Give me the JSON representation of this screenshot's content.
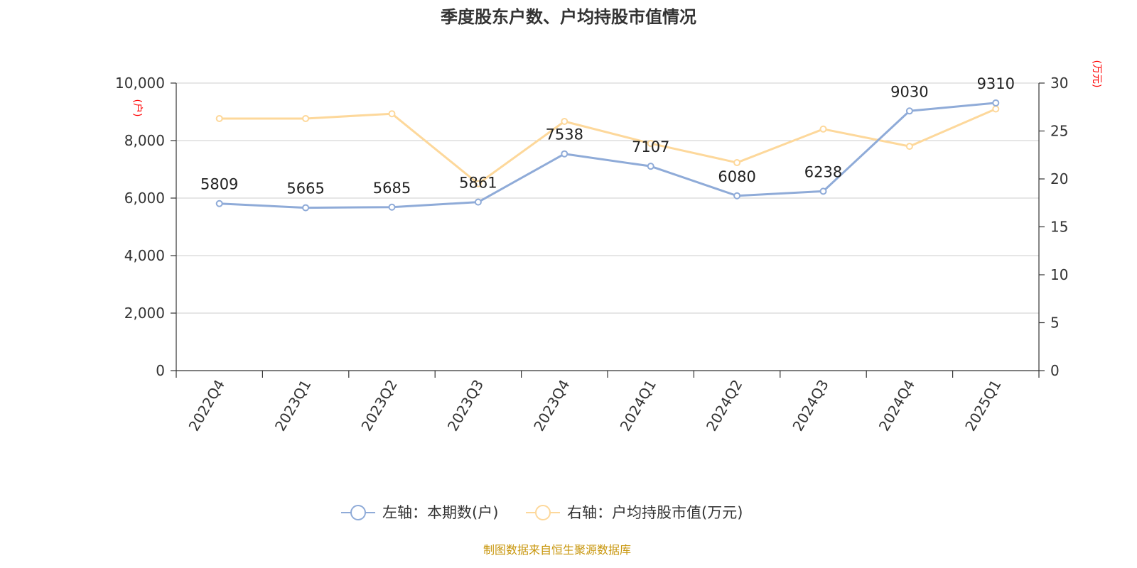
{
  "title": "季度股东户数、户均持股市值情况",
  "source": "制图数据来自恒生聚源数据库",
  "colors": {
    "series_left": "#8fabd8",
    "series_right": "#fdd89b",
    "unit_label": "#ff0000",
    "source_text": "#c8960c",
    "grid": "#cccccc",
    "axis": "#333333"
  },
  "chart_data": {
    "type": "line",
    "title": "季度股东户数、户均持股市值情况",
    "categories": [
      "2022Q4",
      "2023Q1",
      "2023Q2",
      "2023Q3",
      "2023Q4",
      "2024Q1",
      "2024Q2",
      "2024Q3",
      "2024Q4",
      "2025Q1"
    ],
    "y_left": {
      "unit": "(户)",
      "range": [
        0,
        10000
      ],
      "ticks": [
        "0",
        "2,000",
        "4,000",
        "6,000",
        "8,000",
        "10,000"
      ],
      "tick_values": [
        0,
        2000,
        4000,
        6000,
        8000,
        10000
      ]
    },
    "y_right": {
      "unit": "(万元)",
      "range": [
        0,
        30
      ],
      "ticks": [
        "0",
        "5",
        "10",
        "15",
        "20",
        "25",
        "30"
      ],
      "tick_values": [
        0,
        5,
        10,
        15,
        20,
        25,
        30
      ]
    },
    "grid": true,
    "legend_position": "bottom-center",
    "series": [
      {
        "name": "左轴：本期数(户)",
        "axis": "left",
        "values": [
          5809,
          5665,
          5685,
          5861,
          7538,
          7107,
          6080,
          6238,
          9030,
          9310
        ],
        "labels": [
          "5809",
          "5665",
          "5685",
          "5861",
          "7538",
          "7107",
          "6080",
          "6238",
          "9030",
          "9310"
        ]
      },
      {
        "name": "右轴：户均持股市值(万元)",
        "axis": "right",
        "values": [
          26.3,
          26.3,
          26.8,
          19.5,
          26.0,
          23.7,
          21.7,
          25.2,
          23.4,
          27.3
        ]
      }
    ]
  }
}
